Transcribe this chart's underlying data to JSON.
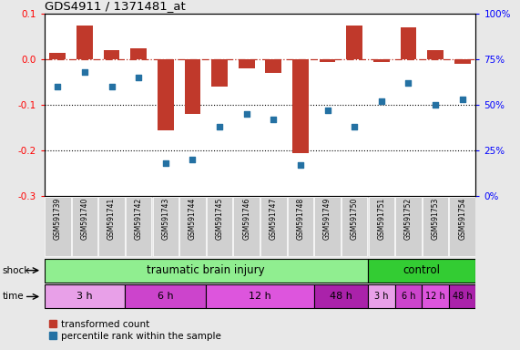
{
  "title": "GDS4911 / 1371481_at",
  "samples": [
    "GSM591739",
    "GSM591740",
    "GSM591741",
    "GSM591742",
    "GSM591743",
    "GSM591744",
    "GSM591745",
    "GSM591746",
    "GSM591747",
    "GSM591748",
    "GSM591749",
    "GSM591750",
    "GSM591751",
    "GSM591752",
    "GSM591753",
    "GSM591754"
  ],
  "red_values": [
    0.015,
    0.075,
    0.02,
    0.025,
    -0.155,
    -0.12,
    -0.06,
    -0.02,
    -0.03,
    -0.205,
    -0.005,
    0.075,
    -0.005,
    0.07,
    0.02,
    -0.01
  ],
  "blue_values_pct": [
    60,
    68,
    60,
    65,
    18,
    20,
    38,
    45,
    42,
    17,
    47,
    38,
    52,
    62,
    50,
    53
  ],
  "ylim_left": [
    -0.3,
    0.1
  ],
  "ylim_right": [
    0,
    100
  ],
  "yticks_left": [
    -0.3,
    -0.2,
    -0.1,
    0.0,
    0.1
  ],
  "yticks_right": [
    0,
    25,
    50,
    75,
    100
  ],
  "ytick_labels_right": [
    "0%",
    "25%",
    "50%",
    "75%",
    "100%"
  ],
  "hline_y": 0.0,
  "dotted_lines": [
    -0.1,
    -0.2
  ],
  "bar_color": "#c0392b",
  "scatter_color": "#2471a3",
  "shock_tbi_label": "traumatic brain injury",
  "shock_ctrl_label": "control",
  "shock_row_label": "shock",
  "time_row_label": "time",
  "tbi_color": "#90EE90",
  "ctrl_color": "#33cc33",
  "sample_box_color": "#d0d0d0",
  "time_colors_tbi": [
    "#e8a0e8",
    "#cc44cc",
    "#dd55dd",
    "#aa22aa"
  ],
  "time_colors_ctrl": [
    "#e8a0e8",
    "#cc44cc",
    "#dd55dd",
    "#aa22aa"
  ],
  "time_groups_tbi": [
    {
      "label": "3 h",
      "start": 0,
      "end": 3
    },
    {
      "label": "6 h",
      "start": 3,
      "end": 6
    },
    {
      "label": "12 h",
      "start": 6,
      "end": 10
    },
    {
      "label": "48 h",
      "start": 10,
      "end": 12
    }
  ],
  "time_groups_ctrl": [
    {
      "label": "3 h",
      "start": 12,
      "end": 13
    },
    {
      "label": "6 h",
      "start": 13,
      "end": 14
    },
    {
      "label": "12 h",
      "start": 14,
      "end": 15
    },
    {
      "label": "48 h",
      "start": 15,
      "end": 16
    }
  ],
  "tbi_sample_count": 12,
  "legend_red": "transformed count",
  "legend_blue": "percentile rank within the sample",
  "background_color": "#e8e8e8",
  "plot_bg": "#ffffff"
}
